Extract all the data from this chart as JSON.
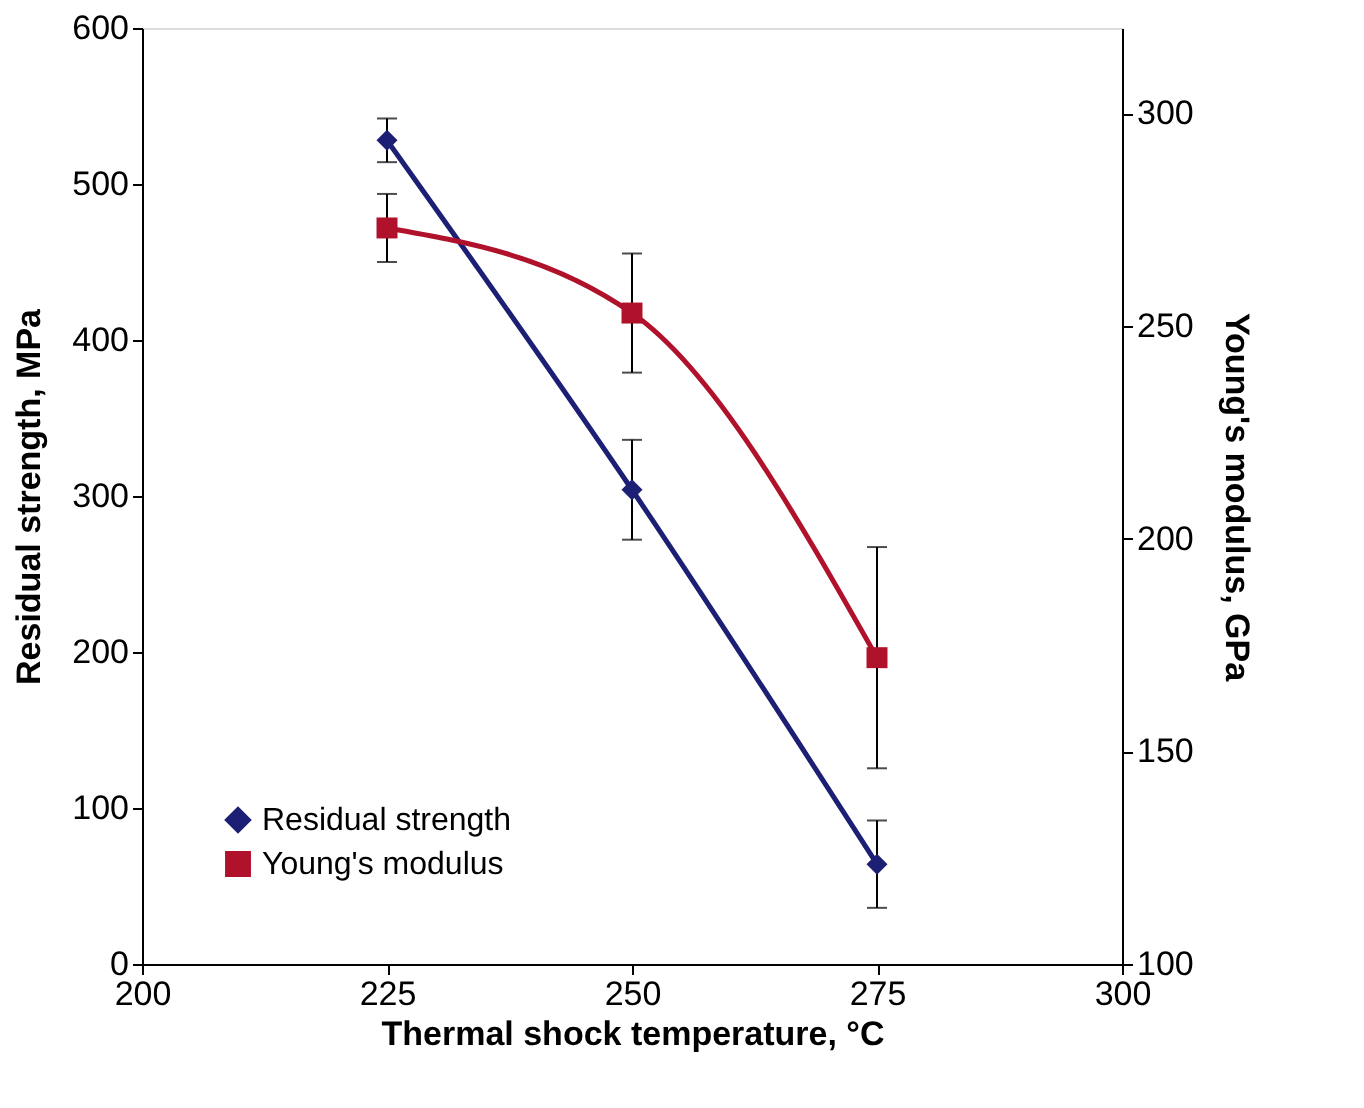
{
  "chart_data": {
    "type": "line",
    "xlabel": "Thermal shock temperature, °C",
    "ylabel": "Residual strength, MPa",
    "y2label": "Young's modulus, GPa",
    "x": [
      225,
      250,
      275
    ],
    "series": [
      {
        "name": "Residual strength",
        "color": "#1c1f73",
        "values": [
          528,
          304,
          64
        ],
        "errors": [
          14,
          32,
          28
        ],
        "marker": "diamond"
      },
      {
        "name": "Young's modulus",
        "color": "#b0122c",
        "values": [
          273,
          253,
          172
        ],
        "errors": [
          8,
          14,
          26
        ],
        "marker": "square",
        "axis": "y2"
      }
    ],
    "xlim": [
      200,
      300
    ],
    "xticks": [
      200,
      225,
      250,
      275,
      300
    ],
    "ylim": [
      0,
      600
    ],
    "yticks": [
      0,
      100,
      200,
      300,
      400,
      500,
      600
    ],
    "y2lim": [
      100,
      320
    ],
    "y2ticks": [
      100,
      150,
      200,
      250,
      300
    ],
    "grid": false,
    "legend": "bottom left",
    "line_style": "solid"
  }
}
